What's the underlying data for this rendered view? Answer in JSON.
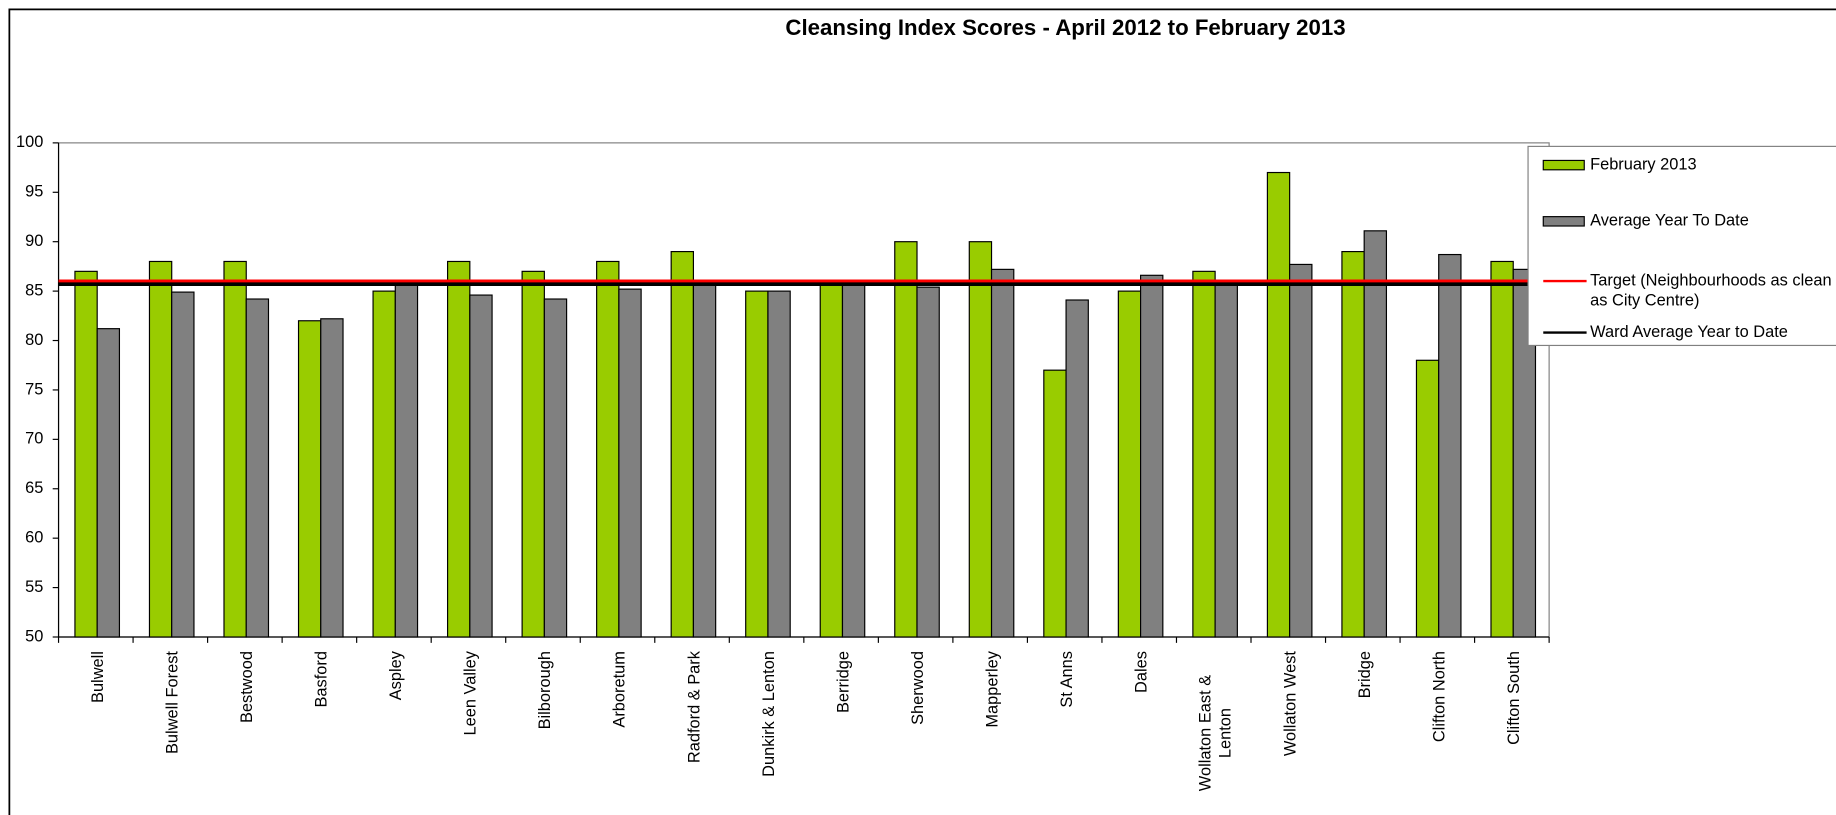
{
  "chart_data": {
    "type": "bar",
    "title": "Cleansing Index Scores - April 2012 to February 2013",
    "categories": [
      "Bulwell",
      "Bulwell Forest",
      "Bestwood",
      "Basford",
      "Aspley",
      "Leen Valley",
      "Bilborough",
      "Arboretum",
      "Radford & Park",
      "Dunkirk & Lenton",
      "Berridge",
      "Sherwood",
      "Mapperley",
      "St Anns",
      "Dales",
      "Wollaton East & Lenton",
      "Wollaton West",
      "Bridge",
      "Clifton North",
      "Clifton South"
    ],
    "series": [
      {
        "name": "February 2013",
        "color": "#99cc00",
        "values": [
          87,
          88,
          88,
          82,
          85,
          88,
          87,
          88,
          89,
          85,
          86,
          90,
          90,
          77,
          85,
          87,
          97,
          89,
          78,
          88
        ]
      },
      {
        "name": "Average Year To Date",
        "color": "#808080",
        "values": [
          81.2,
          84.9,
          84.2,
          82.2,
          85.9,
          84.6,
          84.2,
          85.2,
          86.1,
          85,
          85.9,
          85.4,
          87.2,
          84.1,
          86.6,
          85.9,
          87.7,
          91.1,
          88.7,
          87.2
        ]
      }
    ],
    "reference_lines": [
      {
        "name": "Target (Neighbourhoods as clean as City Centre)",
        "color": "#ff0000",
        "value": 86
      },
      {
        "name": "Ward Average Year to Date",
        "color": "#000000",
        "value": 85.7
      }
    ],
    "ylim": [
      50,
      100
    ],
    "yticks": [
      50,
      55,
      60,
      65,
      70,
      75,
      80,
      85,
      90,
      95,
      100
    ],
    "grid": false,
    "legend": "right"
  }
}
